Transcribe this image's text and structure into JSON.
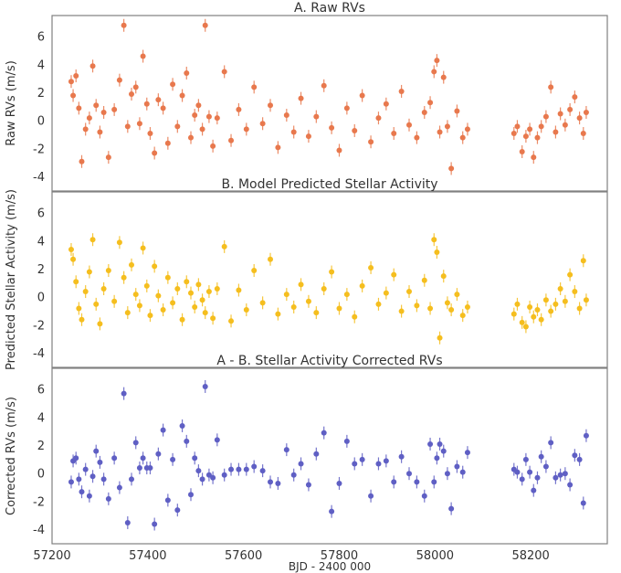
{
  "chart_data": [
    {
      "type": "scatter",
      "title": "A. Raw RVs",
      "ylabel": "Raw RVs (m/s)",
      "ylim": [
        -5,
        7.5
      ],
      "yticks": [
        -4,
        -2,
        0,
        2,
        4,
        6
      ],
      "color": "#e8784d",
      "series": [
        {
          "name": "Raw RVs",
          "x": [
            57240,
            57244,
            57250,
            57256,
            57262,
            57270,
            57278,
            57285,
            57292,
            57300,
            57308,
            57318,
            57330,
            57341,
            57350,
            57358,
            57366,
            57375,
            57383,
            57390,
            57398,
            57405,
            57414,
            57422,
            57432,
            57442,
            57452,
            57462,
            57472,
            57481,
            57490,
            57498,
            57506,
            57514,
            57520,
            57528,
            57536,
            57545,
            57560,
            57574,
            57590,
            57606,
            57622,
            57640,
            57656,
            57672,
            57690,
            57705,
            57720,
            57736,
            57752,
            57768,
            57784,
            57800,
            57816,
            57832,
            57848,
            57866,
            57882,
            57898,
            57914,
            57930,
            57946,
            57962,
            57978,
            57990,
            57998,
            58004,
            58010,
            58018,
            58026,
            58034,
            58046,
            58058,
            58068,
            58165,
            58172,
            58182,
            58190,
            58198,
            58206,
            58214,
            58222,
            58232,
            58242,
            58252,
            58262,
            58272,
            58282,
            58292,
            58302,
            58310,
            58316
          ],
          "y": [
            2.8,
            1.8,
            3.2,
            0.9,
            -2.9,
            -0.6,
            0.2,
            3.9,
            1.1,
            -0.8,
            0.6,
            -2.6,
            0.8,
            2.9,
            6.8,
            -0.4,
            1.9,
            2.4,
            -0.2,
            4.6,
            1.2,
            -0.9,
            -2.3,
            1.5,
            0.9,
            -1.6,
            2.6,
            -0.4,
            1.8,
            3.4,
            -1.2,
            0.4,
            1.1,
            -0.6,
            6.8,
            0.3,
            -1.8,
            0.2,
            3.5,
            -1.4,
            0.8,
            -0.6,
            2.4,
            -0.2,
            1.1,
            -1.9,
            0.4,
            -0.8,
            1.6,
            -1.1,
            0.3,
            2.5,
            -0.5,
            -2.1,
            0.9,
            -0.7,
            1.8,
            -1.5,
            0.2,
            1.2,
            -0.9,
            2.1,
            -0.3,
            -1.2,
            0.6,
            1.3,
            3.5,
            4.3,
            -0.8,
            3.1,
            -0.4,
            -3.4,
            0.7,
            -1.2,
            -0.6,
            -0.9,
            -0.4,
            -2.2,
            -1.1,
            -0.6,
            -2.6,
            -1.2,
            -0.4,
            0.3,
            2.4,
            -0.8,
            0.5,
            -0.3,
            0.8,
            1.7,
            0.2,
            -0.9,
            0.6
          ]
        }
      ]
    },
    {
      "type": "scatter",
      "title": "B. Model Predicted Stellar Activity",
      "ylabel": "Predicted Stellar Activity (m/s)",
      "ylim": [
        -5,
        7.5
      ],
      "yticks": [
        -4,
        -2,
        0,
        2,
        4,
        6
      ],
      "color": "#f5be1e",
      "series": [
        {
          "name": "Predicted Stellar Activity",
          "x": [
            57240,
            57244,
            57250,
            57256,
            57262,
            57270,
            57278,
            57285,
            57292,
            57300,
            57308,
            57318,
            57330,
            57341,
            57350,
            57358,
            57366,
            57375,
            57383,
            57390,
            57398,
            57405,
            57414,
            57422,
            57432,
            57442,
            57452,
            57462,
            57472,
            57481,
            57490,
            57498,
            57506,
            57514,
            57520,
            57528,
            57536,
            57545,
            57560,
            57574,
            57590,
            57606,
            57622,
            57640,
            57656,
            57672,
            57690,
            57705,
            57720,
            57736,
            57752,
            57768,
            57784,
            57800,
            57816,
            57832,
            57848,
            57866,
            57882,
            57898,
            57914,
            57930,
            57946,
            57962,
            57978,
            57990,
            57998,
            58004,
            58010,
            58018,
            58026,
            58034,
            58046,
            58058,
            58068,
            58165,
            58172,
            58182,
            58190,
            58198,
            58206,
            58214,
            58222,
            58232,
            58242,
            58252,
            58262,
            58272,
            58282,
            58292,
            58302,
            58310,
            58316
          ],
          "y": [
            3.4,
            2.7,
            1.1,
            -0.8,
            -1.6,
            0.4,
            1.8,
            4.1,
            -0.5,
            -1.9,
            0.6,
            1.9,
            -0.3,
            3.9,
            1.4,
            -1.1,
            2.3,
            0.2,
            -0.6,
            3.5,
            0.8,
            -1.3,
            2.2,
            0.1,
            -0.9,
            1.4,
            -0.4,
            0.6,
            -1.6,
            1.1,
            0.3,
            -0.7,
            0.9,
            -0.2,
            -1.1,
            0.4,
            -1.5,
            0.6,
            3.6,
            -1.7,
            0.5,
            -0.9,
            1.9,
            -0.4,
            2.7,
            -1.2,
            0.2,
            -0.7,
            0.9,
            -0.3,
            -1.1,
            0.6,
            1.8,
            -0.8,
            0.2,
            -1.4,
            0.8,
            2.1,
            -0.5,
            0.3,
            1.6,
            -1.0,
            0.4,
            -0.6,
            1.2,
            -0.8,
            4.1,
            3.2,
            -2.9,
            1.5,
            -0.4,
            -0.9,
            0.2,
            -1.3,
            -0.7,
            -1.2,
            -0.5,
            -1.8,
            -2.1,
            -0.7,
            -1.4,
            -0.9,
            -1.6,
            -0.2,
            -1.0,
            -0.5,
            0.6,
            -0.3,
            1.6,
            0.4,
            -0.8,
            2.6,
            -0.2
          ]
        }
      ]
    },
    {
      "type": "scatter",
      "title": "A - B. Stellar Activity Corrected RVs",
      "ylabel": "Corrected RVs (m/s)",
      "xlabel": "BJD - 2400 000",
      "ylim": [
        -5,
        7.5
      ],
      "yticks": [
        -4,
        -2,
        0,
        2,
        4,
        6
      ],
      "xlim": [
        57200,
        58360
      ],
      "xticks": [
        57200,
        57400,
        57600,
        57800,
        58000,
        58200
      ],
      "color": "#5f5fc4",
      "series": [
        {
          "name": "Corrected RVs",
          "x": [
            57240,
            57244,
            57250,
            57256,
            57262,
            57270,
            57278,
            57285,
            57292,
            57300,
            57308,
            57318,
            57330,
            57341,
            57350,
            57358,
            57366,
            57375,
            57383,
            57390,
            57398,
            57405,
            57414,
            57422,
            57432,
            57442,
            57452,
            57462,
            57472,
            57481,
            57490,
            57498,
            57506,
            57514,
            57520,
            57528,
            57536,
            57545,
            57560,
            57574,
            57590,
            57606,
            57622,
            57640,
            57656,
            57672,
            57690,
            57705,
            57720,
            57736,
            57752,
            57768,
            57784,
            57800,
            57816,
            57832,
            57848,
            57866,
            57882,
            57898,
            57914,
            57930,
            57946,
            57962,
            57978,
            57990,
            57998,
            58004,
            58010,
            58018,
            58026,
            58034,
            58046,
            58058,
            58068,
            58165,
            58172,
            58182,
            58190,
            58198,
            58206,
            58214,
            58222,
            58232,
            58242,
            58252,
            58262,
            58272,
            58282,
            58292,
            58302,
            58310,
            58316
          ],
          "y": [
            -0.6,
            0.9,
            1.1,
            -0.4,
            -1.3,
            0.3,
            -1.6,
            -0.2,
            1.6,
            0.8,
            -0.4,
            -1.8,
            1.1,
            -1.0,
            5.7,
            -3.5,
            -0.4,
            2.2,
            0.4,
            1.1,
            0.4,
            0.4,
            -3.6,
            1.4,
            3.1,
            -1.9,
            1.0,
            -2.6,
            3.4,
            2.3,
            -1.5,
            1.1,
            0.2,
            -0.4,
            6.2,
            -0.1,
            -0.3,
            2.4,
            -0.1,
            0.3,
            0.3,
            0.3,
            0.5,
            0.2,
            -0.6,
            -0.7,
            1.7,
            -0.1,
            0.7,
            -0.8,
            1.4,
            2.9,
            -2.7,
            -0.7,
            2.3,
            0.7,
            1.0,
            -1.6,
            0.7,
            0.9,
            -0.6,
            1.2,
            0.0,
            -0.6,
            -1.6,
            2.1,
            -0.6,
            1.1,
            2.1,
            1.6,
            0.0,
            -2.5,
            0.5,
            0.1,
            1.5,
            0.3,
            0.1,
            -0.4,
            1.0,
            0.1,
            -1.2,
            -0.3,
            1.2,
            0.5,
            2.2,
            -0.3,
            -0.1,
            0.0,
            -0.8,
            1.3,
            1.0,
            -2.1,
            2.7
          ]
        }
      ]
    }
  ]
}
